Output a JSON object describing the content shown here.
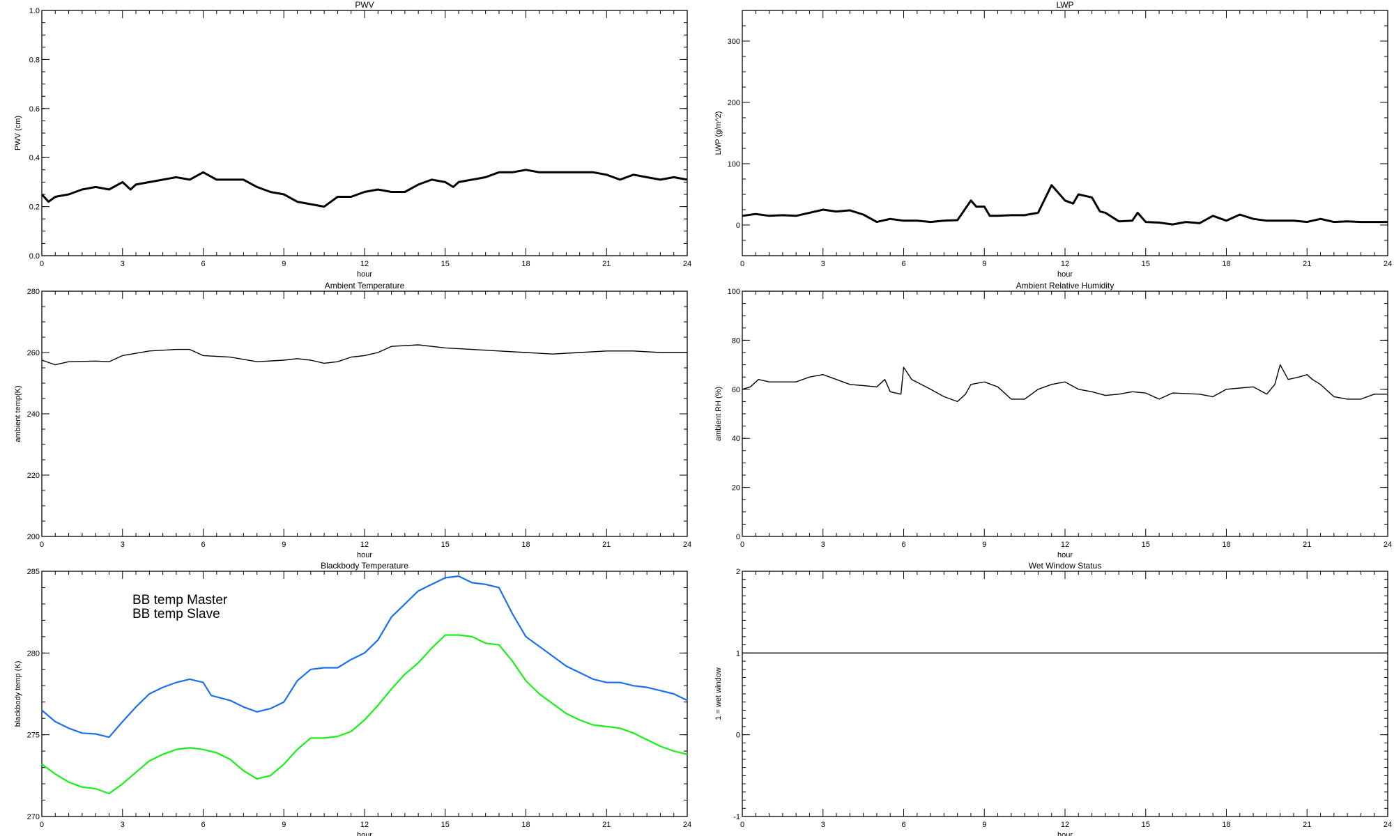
{
  "chart_data": [
    {
      "type": "line",
      "title": "PWV",
      "xlabel": "hour",
      "ylabel": "PWV (cm)",
      "xlim": [
        0,
        24
      ],
      "ylim": [
        0.0,
        1.0
      ],
      "xticks": [
        "0",
        "3",
        "6",
        "9",
        "12",
        "15",
        "18",
        "21",
        "24"
      ],
      "yticks": [
        "0.0",
        "0.2",
        "0.4",
        "0.6",
        "0.8",
        "1.0"
      ],
      "series": [
        {
          "color": "#000000",
          "x": [
            0,
            0.25,
            0.5,
            1,
            1.5,
            2,
            2.5,
            3,
            3.3,
            3.5,
            4,
            4.5,
            5,
            5.5,
            6,
            6.5,
            7,
            7.5,
            8,
            8.5,
            9,
            9.5,
            10,
            10.5,
            11,
            11.5,
            12,
            12.5,
            13,
            13.5,
            14,
            14.5,
            15,
            15.3,
            15.5,
            16,
            16.5,
            17,
            17.5,
            18,
            18.5,
            19,
            19.5,
            20,
            20.5,
            21,
            21.5,
            22,
            22.5,
            23,
            23.5,
            24
          ],
          "y": [
            0.25,
            0.22,
            0.24,
            0.25,
            0.27,
            0.28,
            0.27,
            0.3,
            0.27,
            0.29,
            0.3,
            0.31,
            0.32,
            0.31,
            0.34,
            0.31,
            0.31,
            0.31,
            0.28,
            0.26,
            0.25,
            0.22,
            0.21,
            0.2,
            0.24,
            0.24,
            0.26,
            0.27,
            0.26,
            0.26,
            0.29,
            0.31,
            0.3,
            0.28,
            0.3,
            0.31,
            0.32,
            0.34,
            0.34,
            0.35,
            0.34,
            0.34,
            0.34,
            0.34,
            0.34,
            0.33,
            0.31,
            0.33,
            0.32,
            0.31,
            0.32,
            0.31
          ]
        }
      ]
    },
    {
      "type": "line",
      "title": "LWP",
      "xlabel": "hour",
      "ylabel": "LWP (g/m^2)",
      "xlim": [
        0,
        24
      ],
      "ylim": [
        -50,
        350
      ],
      "xticks": [
        "0",
        "3",
        "6",
        "9",
        "12",
        "15",
        "18",
        "21",
        "24"
      ],
      "yticks": [
        "0",
        "100",
        "200",
        "300"
      ],
      "series": [
        {
          "color": "#000000",
          "x": [
            0,
            0.5,
            1,
            1.5,
            2,
            2.5,
            3,
            3.5,
            4,
            4.5,
            5,
            5.5,
            6,
            6.5,
            7,
            7.5,
            8,
            8.5,
            8.7,
            9,
            9.2,
            9.5,
            10,
            10.5,
            11,
            11.5,
            12,
            12.3,
            12.5,
            13,
            13.3,
            13.5,
            14,
            14.5,
            14.7,
            15,
            15.5,
            16,
            16.5,
            17,
            17.5,
            18,
            18.5,
            19,
            19.5,
            20,
            20.5,
            21,
            21.5,
            22,
            22.5,
            23,
            23.5,
            24
          ],
          "y": [
            15,
            18,
            15,
            16,
            15,
            20,
            25,
            22,
            24,
            17,
            5,
            10,
            7,
            7,
            5,
            7,
            8,
            40,
            30,
            30,
            15,
            15,
            16,
            16,
            20,
            65,
            40,
            35,
            50,
            45,
            22,
            20,
            6,
            7,
            20,
            5,
            4,
            1,
            5,
            3,
            15,
            7,
            17,
            10,
            7,
            7,
            7,
            5,
            10,
            5,
            6,
            5,
            5,
            5
          ]
        }
      ]
    },
    {
      "type": "line",
      "title": "Ambient Temperature",
      "xlabel": "hour",
      "ylabel": "ambient temp(K)",
      "xlim": [
        0,
        24
      ],
      "ylim": [
        200,
        280
      ],
      "xticks": [
        "0",
        "3",
        "6",
        "9",
        "12",
        "15",
        "18",
        "21",
        "24"
      ],
      "yticks": [
        "200",
        "220",
        "240",
        "260",
        "280"
      ],
      "series": [
        {
          "color": "#000000",
          "x": [
            0,
            0.5,
            1,
            2,
            2.5,
            3,
            4,
            5,
            5.5,
            6,
            7,
            8,
            9,
            9.5,
            10,
            10.5,
            11,
            11.5,
            12,
            12.5,
            13,
            14,
            15,
            16,
            17,
            18,
            19,
            20,
            21,
            22,
            23,
            24
          ],
          "y": [
            257.5,
            256,
            257,
            257.2,
            257,
            259,
            260.5,
            261,
            261,
            259,
            258.5,
            257,
            257.5,
            258,
            257.5,
            256.5,
            257,
            258.5,
            259,
            260,
            262,
            262.5,
            261.5,
            261,
            260.5,
            260,
            259.5,
            260,
            260.5,
            260.5,
            260,
            260
          ]
        }
      ]
    },
    {
      "type": "line",
      "title": "Ambient Relative Humidity",
      "xlabel": "hour",
      "ylabel": "ambient RH (%)",
      "xlim": [
        0,
        24
      ],
      "ylim": [
        0,
        100
      ],
      "xticks": [
        "0",
        "3",
        "6",
        "9",
        "12",
        "15",
        "18",
        "21",
        "24"
      ],
      "yticks": [
        "0",
        "20",
        "40",
        "60",
        "80",
        "100"
      ],
      "series": [
        {
          "color": "#000000",
          "x": [
            0,
            0.3,
            0.6,
            1,
            2,
            2.5,
            3,
            3.5,
            4,
            4.5,
            5,
            5.3,
            5.5,
            5.9,
            6,
            6.3,
            7,
            7.5,
            8,
            8.3,
            8.5,
            9,
            9.5,
            10,
            10.5,
            11,
            11.5,
            12,
            12.5,
            13,
            13.5,
            14,
            14.5,
            15,
            15.5,
            16,
            17,
            17.5,
            18,
            18.5,
            19,
            19.5,
            19.8,
            20,
            20.3,
            20.7,
            21,
            21.2,
            21.5,
            22,
            22.5,
            23,
            23.5,
            24
          ],
          "y": [
            60,
            61,
            64,
            63,
            63,
            65,
            66,
            64,
            62,
            61.5,
            61,
            64,
            59,
            58,
            69,
            64,
            60,
            57,
            55,
            58,
            62,
            63,
            61,
            56,
            56,
            60,
            62,
            63,
            60,
            59,
            57.5,
            58,
            59,
            58.5,
            56,
            58.5,
            58,
            57,
            60,
            60.5,
            61,
            58,
            62,
            70,
            64,
            65,
            66,
            64,
            62,
            57,
            56,
            56,
            58,
            58
          ]
        }
      ]
    },
    {
      "type": "line",
      "title": "Blackbody Temperature",
      "xlabel": "hour",
      "ylabel": "blackbody temp (K)",
      "xlim": [
        0,
        24
      ],
      "ylim": [
        270,
        285
      ],
      "xticks": [
        "0",
        "3",
        "6",
        "9",
        "12",
        "15",
        "18",
        "21",
        "24"
      ],
      "yticks": [
        "270",
        "275",
        "280",
        "285"
      ],
      "legend": "top-left",
      "series": [
        {
          "name": "BB temp Master",
          "color": "#1a6ff0",
          "x": [
            0,
            0.5,
            1,
            1.5,
            2,
            2.5,
            3,
            3.5,
            4,
            4.5,
            5,
            5.5,
            6,
            6.3,
            7,
            7.5,
            8,
            8.5,
            9,
            9.5,
            10,
            10.5,
            11,
            11.5,
            12,
            12.5,
            13,
            13.5,
            14,
            14.5,
            15,
            15.5,
            16,
            16.5,
            17,
            17.5,
            18,
            18.5,
            19,
            19.5,
            20,
            20.5,
            21,
            21.5,
            22,
            22.5,
            23,
            23.5,
            24
          ],
          "y": [
            276.5,
            275.8,
            275.4,
            275.1,
            275.05,
            274.85,
            275.8,
            276.7,
            277.5,
            277.9,
            278.2,
            278.4,
            278.2,
            277.4,
            277.1,
            276.7,
            276.4,
            276.6,
            277,
            278.3,
            279,
            279.1,
            279.1,
            279.6,
            280,
            280.8,
            282.2,
            283,
            283.8,
            284.2,
            284.6,
            284.7,
            284.3,
            284.2,
            284.0,
            282.4,
            281,
            280.4,
            279.8,
            279.2,
            278.8,
            278.4,
            278.2,
            278.2,
            278.0,
            277.9,
            277.7,
            277.5,
            277.1
          ]
        },
        {
          "name": "BB temp Slave",
          "color": "#18f018",
          "x": [
            0,
            0.5,
            1,
            1.5,
            2,
            2.5,
            3,
            3.5,
            4,
            4.5,
            5,
            5.5,
            6,
            6.5,
            7,
            7.5,
            8,
            8.5,
            9,
            9.5,
            10,
            10.5,
            11,
            11.5,
            12,
            12.5,
            13,
            13.5,
            14,
            14.5,
            15,
            15.5,
            16,
            16.5,
            17,
            17.5,
            18,
            18.5,
            19,
            19.5,
            20,
            20.5,
            21,
            21.5,
            22,
            22.5,
            23,
            23.5,
            24
          ],
          "y": [
            273.2,
            272.6,
            272.1,
            271.8,
            271.7,
            271.4,
            272,
            272.7,
            273.4,
            273.8,
            274.1,
            274.2,
            274.1,
            273.9,
            273.5,
            272.8,
            272.3,
            272.5,
            273.2,
            274.1,
            274.8,
            274.8,
            274.9,
            275.2,
            275.9,
            276.8,
            277.8,
            278.7,
            279.4,
            280.3,
            281.1,
            281.1,
            281.0,
            280.6,
            280.5,
            279.5,
            278.3,
            277.5,
            276.9,
            276.3,
            275.9,
            275.6,
            275.5,
            275.4,
            275.1,
            274.7,
            274.3,
            274.0,
            273.8
          ]
        }
      ]
    },
    {
      "type": "line",
      "title": "Wet Window Status",
      "xlabel": "hour",
      "ylabel": "1 = wet window",
      "xlim": [
        0,
        24
      ],
      "ylim": [
        -1,
        2
      ],
      "xticks": [
        "0",
        "3",
        "6",
        "9",
        "12",
        "15",
        "18",
        "21",
        "24"
      ],
      "yticks": [
        "-1",
        "0",
        "1",
        "2"
      ],
      "series": [
        {
          "color": "#000000",
          "x": [
            0,
            24
          ],
          "y": [
            1,
            1
          ]
        }
      ]
    }
  ]
}
